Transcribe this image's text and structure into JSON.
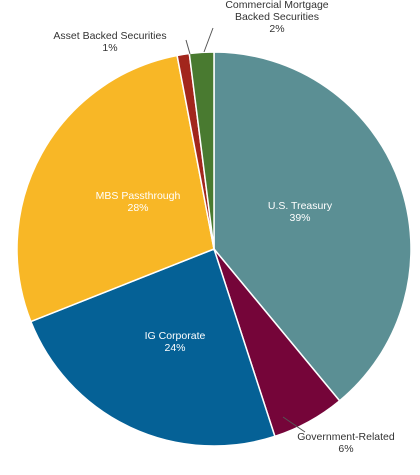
{
  "chart_data": {
    "type": "pie",
    "title": "",
    "labels": [
      "U.S. Treasury",
      "Government-Related",
      "IG Corporate",
      "MBS Passthrough",
      "Asset Backed Securities",
      "Commercial Mortgage Backed Securities"
    ],
    "display_lines": [
      [
        "U.S. Treasury",
        "39%"
      ],
      [
        "Government-Related",
        "6%"
      ],
      [
        "IG Corporate",
        "24%"
      ],
      [
        "MBS Passthrough",
        "28%"
      ],
      [
        "Asset Backed Securities",
        "1%"
      ],
      [
        "Commercial Mortgage",
        "Backed Securities",
        "2%"
      ]
    ],
    "values": [
      39,
      6,
      24,
      28,
      1,
      2
    ],
    "colors": [
      "#5b8f94",
      "#750539",
      "#056196",
      "#f8b726",
      "#a2261c",
      "#497a30"
    ],
    "legend": "none"
  }
}
